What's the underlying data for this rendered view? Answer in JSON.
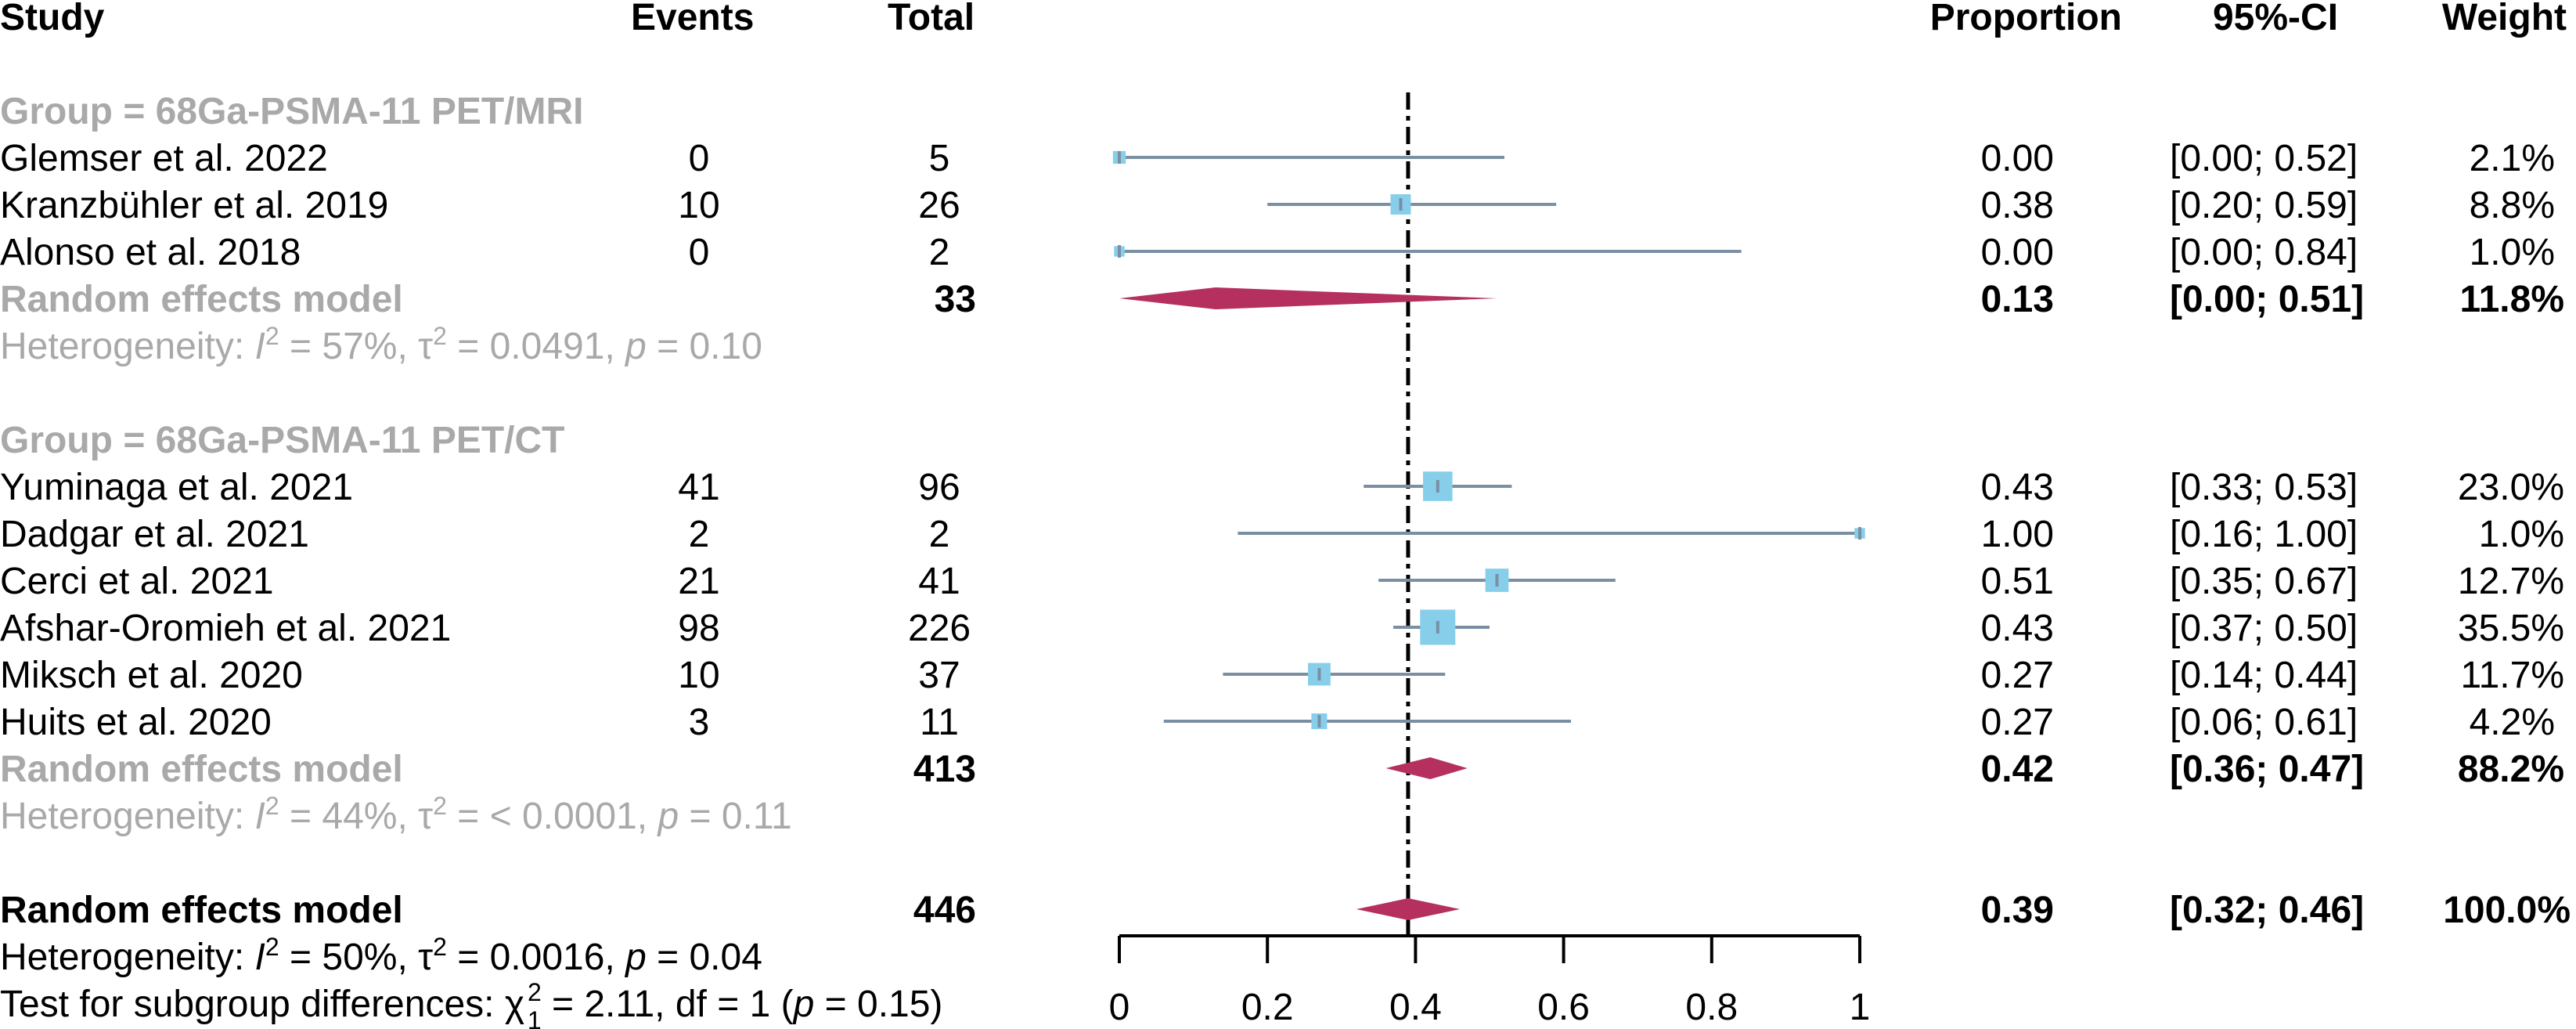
{
  "colors": {
    "ci_line": "#7b8fa3",
    "study_box": "#87ceeb",
    "diamond": "#b5305f",
    "grey_text": "#a9a9a9",
    "text": "#000000"
  },
  "headers": {
    "study": "Study",
    "events": "Events",
    "total": "Total",
    "proportion": "Proportion",
    "ci": "95%-CI",
    "weight": "Weight"
  },
  "chart_data": {
    "type": "forest",
    "xlim": [
      0,
      1
    ],
    "xticks": [
      0,
      0.2,
      0.4,
      0.6,
      0.8,
      1
    ],
    "xtick_labels": [
      "0",
      "0.2",
      "0.4",
      "0.6",
      "0.8",
      "1"
    ],
    "reference_line": 0.39,
    "groups": [
      {
        "title": "Group = 68Ga-PSMA-11 PET/MRI",
        "studies": [
          {
            "name": "Glemser et al. 2022",
            "events": "0",
            "total": "5",
            "prop": 0.0,
            "lo": 0.0,
            "hi": 0.52,
            "weight": 2.1,
            "prop_label": "0.00",
            "ci_label": "[0.00; 0.52]",
            "weight_label": "2.1%"
          },
          {
            "name": "Kranzbühler et al. 2019",
            "events": "10",
            "total": "26",
            "prop": 0.38,
            "lo": 0.2,
            "hi": 0.59,
            "weight": 8.8,
            "prop_label": "0.38",
            "ci_label": "[0.20; 0.59]",
            "weight_label": "8.8%"
          },
          {
            "name": "Alonso et al. 2018",
            "events": "0",
            "total": "2",
            "prop": 0.0,
            "lo": 0.0,
            "hi": 0.84,
            "weight": 1.0,
            "prop_label": "0.00",
            "ci_label": "[0.00; 0.84]",
            "weight_label": "1.0%"
          }
        ],
        "summary": {
          "label": "Random effects model",
          "total": "33",
          "prop": 0.13,
          "lo": 0.0,
          "hi": 0.51,
          "prop_label": "0.13",
          "ci_label": "[0.00; 0.51]",
          "weight_label": "11.8%"
        },
        "heterogeneity": {
          "prefix": "Heterogeneity: ",
          "i2": "I",
          "i2_value": " = 57%, ",
          "tau": "τ",
          "tau_value": " = 0.0491, ",
          "p": "p",
          "p_value": " = 0.10",
          "sup": "2"
        }
      },
      {
        "title": "Group = 68Ga-PSMA-11 PET/CT",
        "studies": [
          {
            "name": "Yuminaga et al. 2021",
            "events": "41",
            "total": "96",
            "prop": 0.43,
            "lo": 0.33,
            "hi": 0.53,
            "weight": 23.0,
            "prop_label": "0.43",
            "ci_label": "[0.33; 0.53]",
            "weight_label": "23.0%"
          },
          {
            "name": "Dadgar et al. 2021",
            "events": "2",
            "total": "2",
            "prop": 1.0,
            "lo": 0.16,
            "hi": 1.0,
            "weight": 1.0,
            "prop_label": "1.00",
            "ci_label": "[0.16; 1.00]",
            "weight_label": "1.0%"
          },
          {
            "name": "Cerci et al. 2021",
            "events": "21",
            "total": "41",
            "prop": 0.51,
            "lo": 0.35,
            "hi": 0.67,
            "weight": 12.7,
            "prop_label": "0.51",
            "ci_label": "[0.35; 0.67]",
            "weight_label": "12.7%"
          },
          {
            "name": "Afshar-Oromieh et al. 2021",
            "events": "98",
            "total": "226",
            "prop": 0.43,
            "lo": 0.37,
            "hi": 0.5,
            "weight": 35.5,
            "prop_label": "0.43",
            "ci_label": "[0.37; 0.50]",
            "weight_label": "35.5%"
          },
          {
            "name": "Miksch et al. 2020",
            "events": "10",
            "total": "37",
            "prop": 0.27,
            "lo": 0.14,
            "hi": 0.44,
            "weight": 11.7,
            "prop_label": "0.27",
            "ci_label": "[0.14; 0.44]",
            "weight_label": "11.7%"
          },
          {
            "name": "Huits et al. 2020",
            "events": "3",
            "total": "11",
            "prop": 0.27,
            "lo": 0.06,
            "hi": 0.61,
            "weight": 4.2,
            "prop_label": "0.27",
            "ci_label": "[0.06; 0.61]",
            "weight_label": "4.2%"
          }
        ],
        "summary": {
          "label": "Random effects model",
          "total": "413",
          "prop": 0.42,
          "lo": 0.36,
          "hi": 0.47,
          "prop_label": "0.42",
          "ci_label": "[0.36; 0.47]",
          "weight_label": "88.2%"
        },
        "heterogeneity": {
          "prefix": "Heterogeneity: ",
          "i2": "I",
          "i2_value": " = 44%, ",
          "tau": "τ",
          "tau_value": " = < 0.0001, ",
          "p": "p",
          "p_value": " = 0.11",
          "sup": "2"
        }
      }
    ],
    "overall": {
      "label": "Random effects model",
      "total": "446",
      "prop": 0.39,
      "lo": 0.32,
      "hi": 0.46,
      "prop_label": "0.39",
      "ci_label": "[0.32; 0.46]",
      "weight_label": "100.0%",
      "heterogeneity": {
        "prefix": "Heterogeneity: ",
        "i2": "I",
        "i2_value": " = 50%, ",
        "tau": "τ",
        "tau_value": " = 0.0016, ",
        "p": "p",
        "p_value": " = 0.04",
        "sup": "2"
      },
      "subgroup_test": {
        "prefix": "Test for subgroup differences: ",
        "chi": "χ",
        "sup": "2",
        "sub": "1",
        "value": " = 2.11, df = 1 (",
        "p": "p",
        "p_value": " = 0.15)"
      }
    }
  }
}
